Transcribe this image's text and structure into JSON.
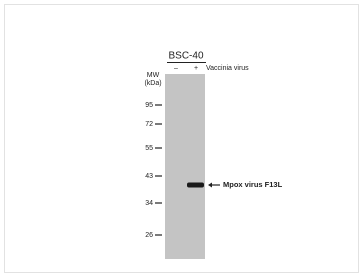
{
  "header": {
    "cell_line": "BSC-40",
    "lanes": [
      "–",
      "+"
    ],
    "treatment": "Vaccinia virus"
  },
  "mw": {
    "title": "MW",
    "unit": "(kDa)",
    "markers": [
      "95",
      "72",
      "55",
      "43",
      "34",
      "26"
    ]
  },
  "band_label": "Mpox virus F13L"
}
